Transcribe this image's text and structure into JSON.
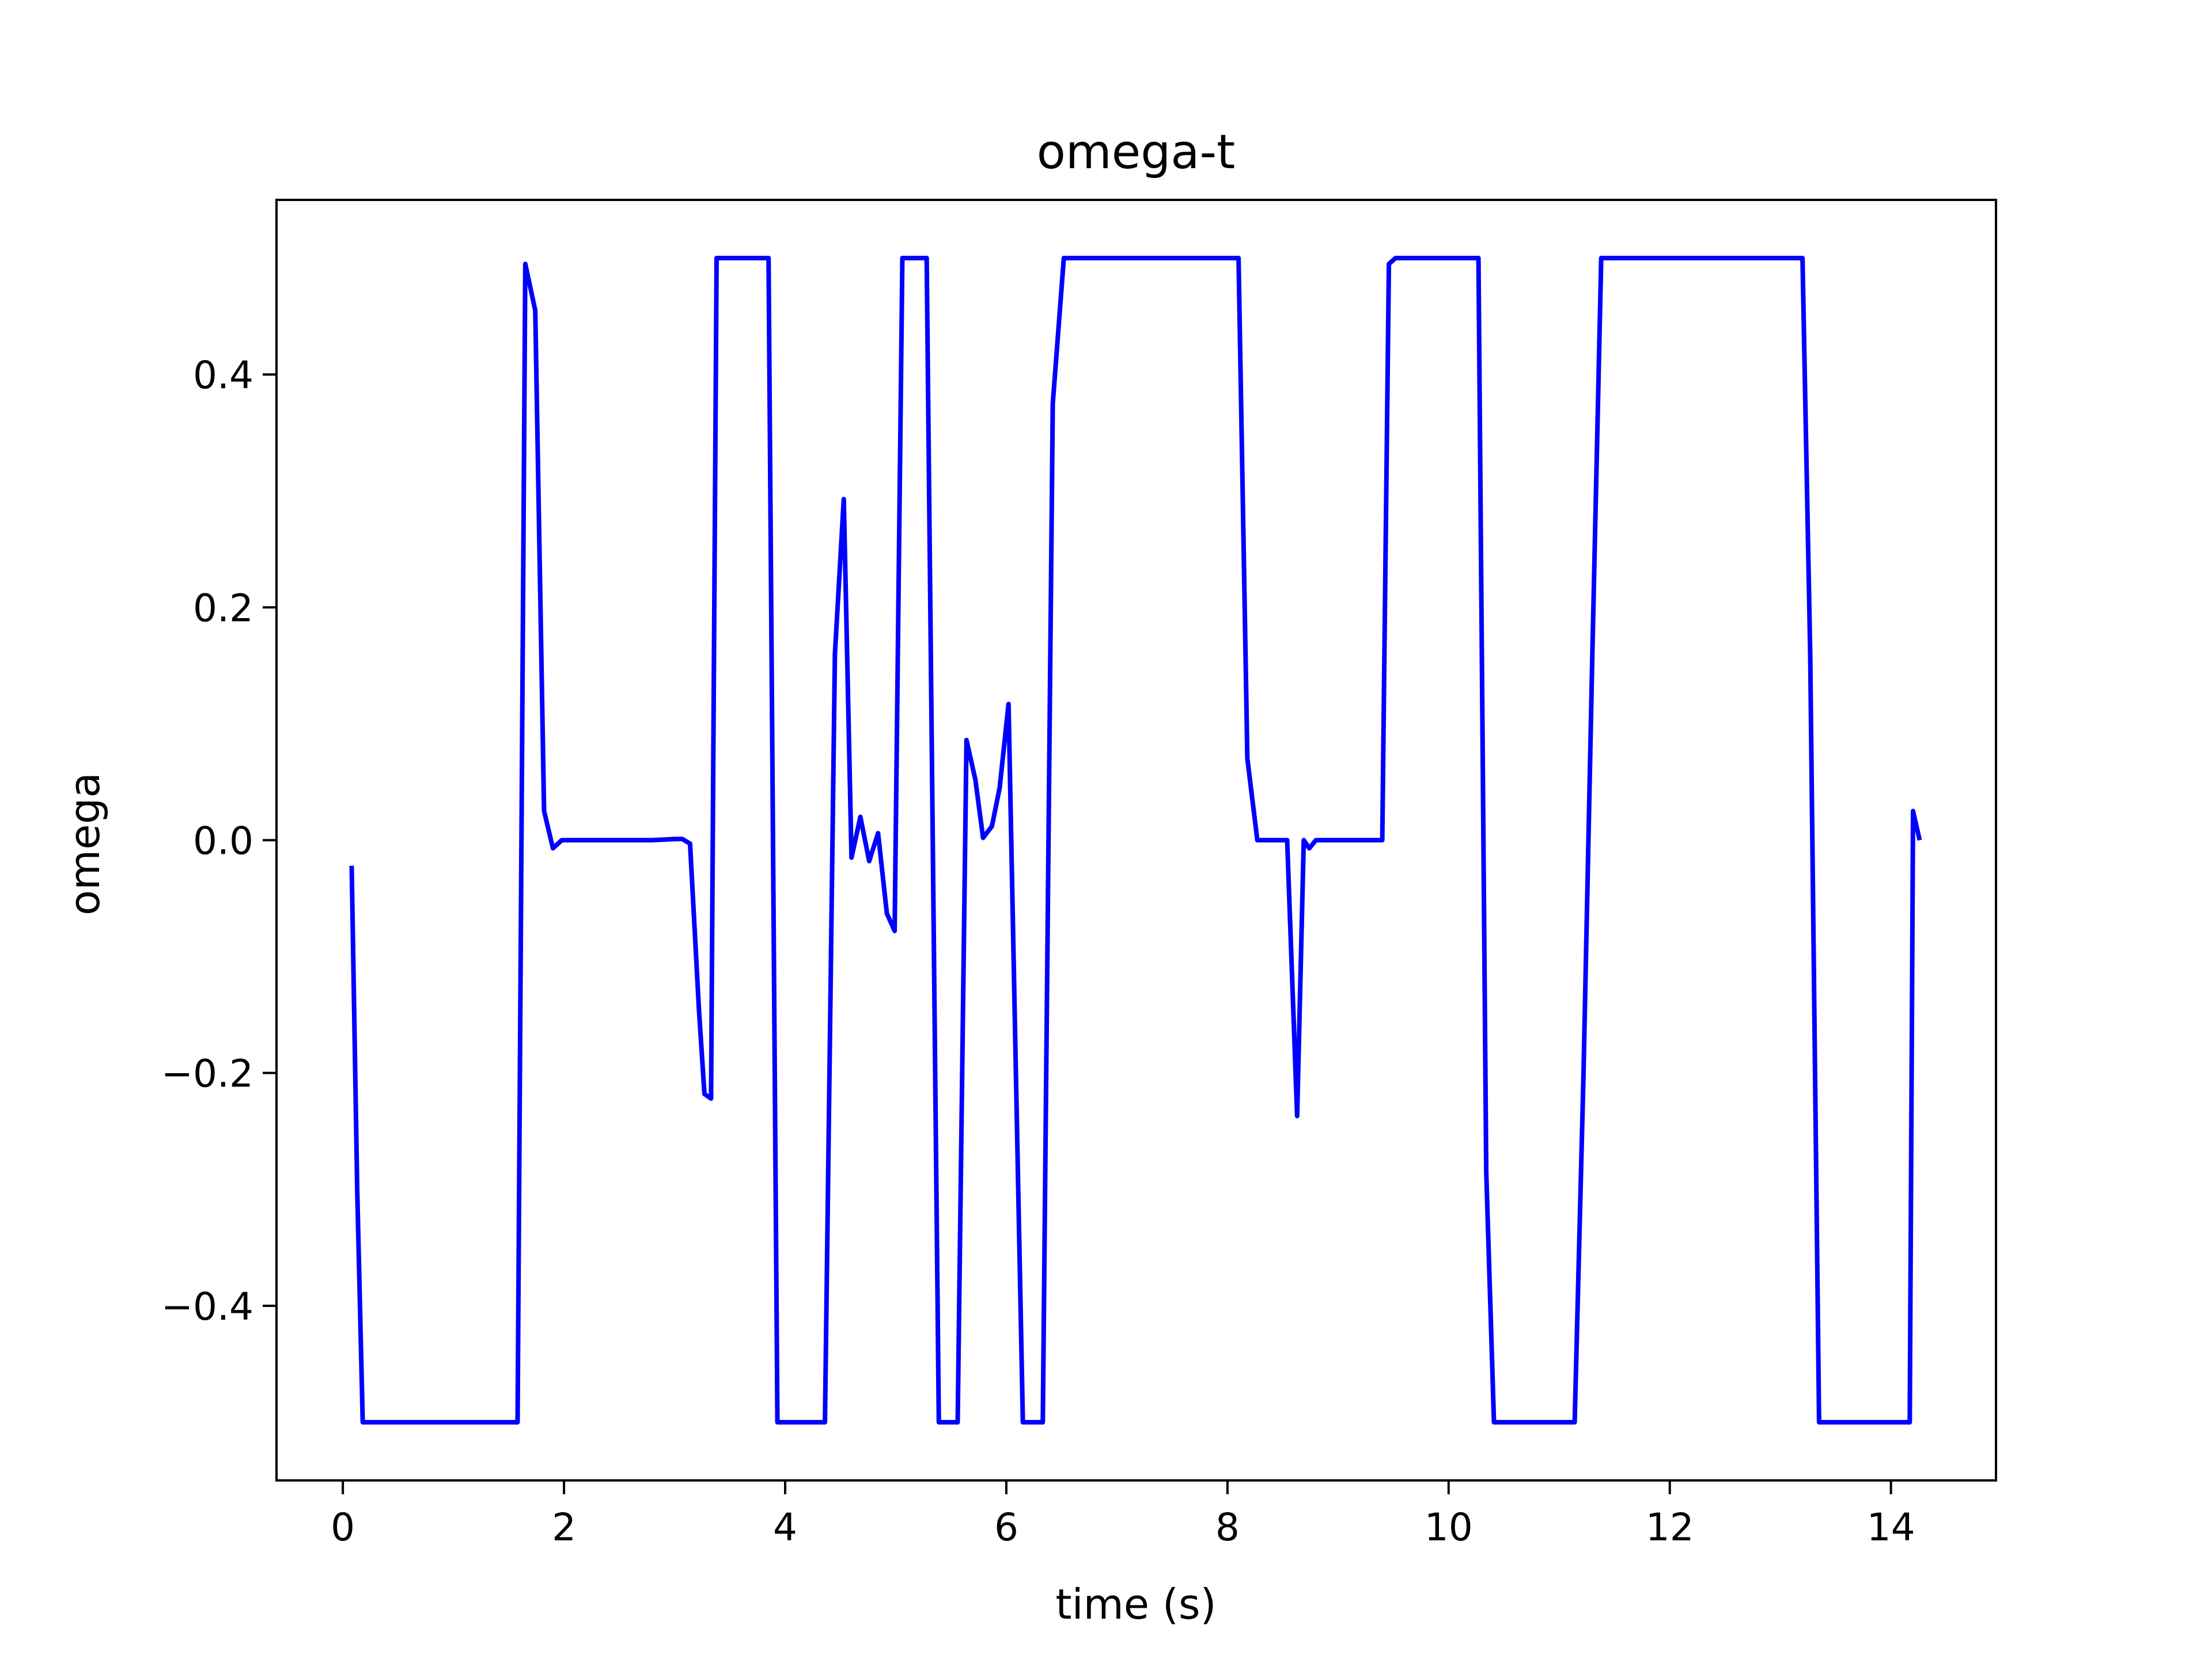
{
  "chart_data": {
    "type": "line",
    "title": "omega-t",
    "xlabel": "time (s)",
    "ylabel": "omega",
    "xlim": [
      -0.6,
      14.95
    ],
    "ylim": [
      -0.55,
      0.55
    ],
    "grid": false,
    "legend": "none",
    "line_color": "#0000ff",
    "xticks": [
      {
        "value": 0,
        "label": "0"
      },
      {
        "value": 2,
        "label": "2"
      },
      {
        "value": 4,
        "label": "4"
      },
      {
        "value": 6,
        "label": "6"
      },
      {
        "value": 8,
        "label": "8"
      },
      {
        "value": 10,
        "label": "10"
      },
      {
        "value": 12,
        "label": "12"
      },
      {
        "value": 14,
        "label": "14"
      }
    ],
    "yticks": [
      {
        "value": -0.4,
        "label": "−0.4"
      },
      {
        "value": -0.2,
        "label": "−0.2"
      },
      {
        "value": 0.0,
        "label": "0.0"
      },
      {
        "value": 0.2,
        "label": "0.2"
      },
      {
        "value": 0.4,
        "label": "0.4"
      }
    ],
    "series": [
      {
        "points": [
          [
            0.08,
            -0.022
          ],
          [
            0.13,
            -0.3
          ],
          [
            0.18,
            -0.5
          ],
          [
            0.3,
            -0.5
          ],
          [
            1.0,
            -0.5
          ],
          [
            1.58,
            -0.5
          ],
          [
            1.65,
            0.495
          ],
          [
            1.74,
            0.455
          ],
          [
            1.82,
            0.025
          ],
          [
            1.9,
            -0.007
          ],
          [
            1.98,
            0.0
          ],
          [
            2.2,
            0.0
          ],
          [
            2.5,
            0.0
          ],
          [
            2.8,
            0.0
          ],
          [
            3.0,
            0.001
          ],
          [
            3.07,
            0.001
          ],
          [
            3.14,
            -0.003
          ],
          [
            3.22,
            -0.145
          ],
          [
            3.27,
            -0.218
          ],
          [
            3.33,
            -0.222
          ],
          [
            3.38,
            0.5
          ],
          [
            3.5,
            0.5
          ],
          [
            3.85,
            0.5
          ],
          [
            3.93,
            -0.5
          ],
          [
            4.05,
            -0.5
          ],
          [
            4.36,
            -0.5
          ],
          [
            4.45,
            0.16
          ],
          [
            4.53,
            0.293
          ],
          [
            4.6,
            -0.015
          ],
          [
            4.68,
            0.02
          ],
          [
            4.76,
            -0.018
          ],
          [
            4.84,
            0.006
          ],
          [
            4.92,
            -0.063
          ],
          [
            4.99,
            -0.078
          ],
          [
            5.06,
            0.5
          ],
          [
            5.2,
            0.5
          ],
          [
            5.28,
            0.5
          ],
          [
            5.39,
            -0.5
          ],
          [
            5.56,
            -0.5
          ],
          [
            5.64,
            0.086
          ],
          [
            5.72,
            0.052
          ],
          [
            5.79,
            0.002
          ],
          [
            5.87,
            0.012
          ],
          [
            5.94,
            0.045
          ],
          [
            6.02,
            0.117
          ],
          [
            6.15,
            -0.5
          ],
          [
            6.33,
            -0.5
          ],
          [
            6.42,
            0.375
          ],
          [
            6.52,
            0.5
          ],
          [
            7.0,
            0.5
          ],
          [
            7.5,
            0.5
          ],
          [
            8.1,
            0.5
          ],
          [
            8.18,
            0.07
          ],
          [
            8.27,
            0.0
          ],
          [
            8.38,
            0.0
          ],
          [
            8.54,
            0.0
          ],
          [
            8.63,
            -0.237
          ],
          [
            8.69,
            0.0
          ],
          [
            8.74,
            -0.007
          ],
          [
            8.8,
            0.0
          ],
          [
            9.0,
            0.0
          ],
          [
            9.4,
            0.0
          ],
          [
            9.46,
            0.495
          ],
          [
            9.52,
            0.5
          ],
          [
            9.8,
            0.5
          ],
          [
            10.27,
            0.5
          ],
          [
            10.34,
            -0.285
          ],
          [
            10.41,
            -0.5
          ],
          [
            10.6,
            -0.5
          ],
          [
            11.14,
            -0.5
          ],
          [
            11.22,
            -0.2
          ],
          [
            11.3,
            0.16
          ],
          [
            11.38,
            0.5
          ],
          [
            11.6,
            0.5
          ],
          [
            12.5,
            0.5
          ],
          [
            13.2,
            0.5
          ],
          [
            13.27,
            0.16
          ],
          [
            13.35,
            -0.5
          ],
          [
            13.6,
            -0.5
          ],
          [
            14.17,
            -0.5
          ],
          [
            14.2,
            0.025
          ],
          [
            14.26,
            0.0
          ]
        ]
      }
    ]
  }
}
